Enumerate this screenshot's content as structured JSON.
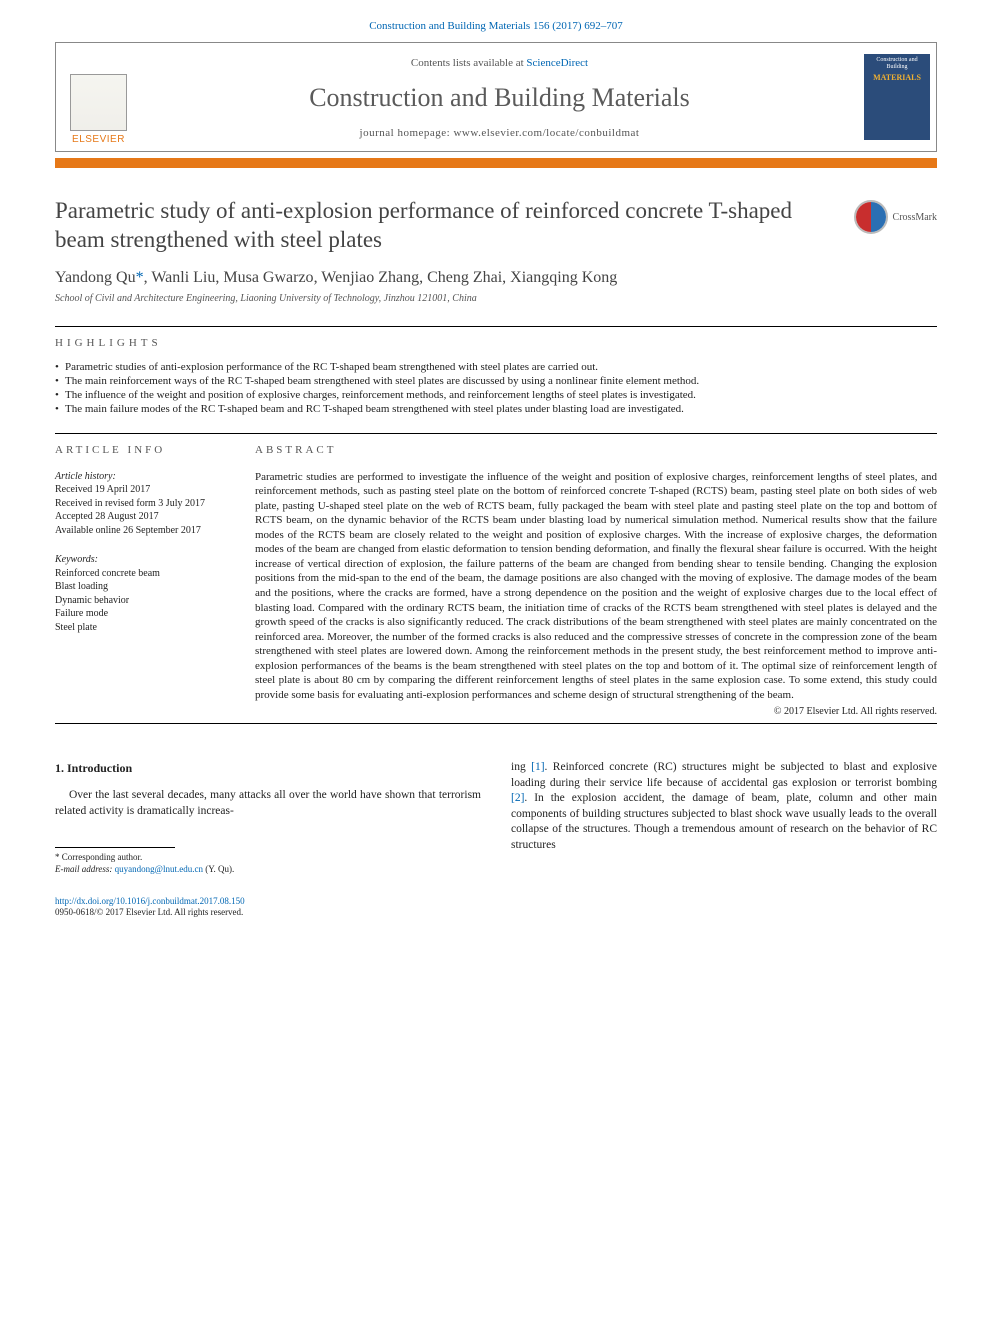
{
  "colors": {
    "link": "#0066b3",
    "accent": "#e67817",
    "text": "#222222",
    "heading": "#555555",
    "cover_bg": "#2b4c7a",
    "cover_accent": "#f0b030"
  },
  "citation": "Construction and Building Materials 156 (2017) 692–707",
  "header": {
    "contents_prefix": "Contents lists available at ",
    "contents_link": "ScienceDirect",
    "journal": "Construction and Building Materials",
    "homepage_prefix": "journal homepage: ",
    "homepage": "www.elsevier.com/locate/conbuildmat",
    "publisher": "ELSEVIER",
    "cover_line1": "Construction and Building",
    "cover_line2": "MATERIALS"
  },
  "crossmark_label": "CrossMark",
  "title": "Parametric study of anti-explosion performance of reinforced concrete T-shaped beam strengthened with steel plates",
  "authors_html": "Yandong Qu *, Wanli Liu, Musa Gwarzo, Wenjiao Zhang, Cheng Zhai, Xiangqing Kong",
  "corr_marker": "*",
  "affiliation": "School of Civil and Architecture Engineering, Liaoning University of Technology, Jinzhou 121001, China",
  "highlights_heading": "HIGHLIGHTS",
  "highlights": [
    "Parametric studies of anti-explosion performance of the RC T-shaped beam strengthened with steel plates are carried out.",
    "The main reinforcement ways of the RC T-shaped beam strengthened with steel plates are discussed by using a nonlinear finite element method.",
    "The influence of the weight and position of explosive charges, reinforcement methods, and reinforcement lengths of steel plates is investigated.",
    "The main failure modes of the RC T-shaped beam and RC T-shaped beam strengthened with steel plates under blasting load are investigated."
  ],
  "article_info_heading": "ARTICLE INFO",
  "history_label": "Article history:",
  "history": [
    "Received 19 April 2017",
    "Received in revised form 3 July 2017",
    "Accepted 28 August 2017",
    "Available online 26 September 2017"
  ],
  "keywords_label": "Keywords:",
  "keywords": [
    "Reinforced concrete beam",
    "Blast loading",
    "Dynamic behavior",
    "Failure mode",
    "Steel plate"
  ],
  "abstract_heading": "ABSTRACT",
  "abstract": "Parametric studies are performed to investigate the influence of the weight and position of explosive charges, reinforcement lengths of steel plates, and reinforcement methods, such as pasting steel plate on the bottom of reinforced concrete T-shaped (RCTS) beam, pasting steel plate on both sides of web plate, pasting U-shaped steel plate on the web of RCTS beam, fully packaged the beam with steel plate and pasting steel plate on the top and bottom of RCTS beam, on the dynamic behavior of the RCTS beam under blasting load by numerical simulation method. Numerical results show that the failure modes of the RCTS beam are closely related to the weight and position of explosive charges. With the increase of explosive charges, the deformation modes of the beam are changed from elastic deformation to tension bending deformation, and finally the flexural shear failure is occurred. With the height increase of vertical direction of explosion, the failure patterns of the beam are changed from bending shear to tensile bending. Changing the explosion positions from the mid-span to the end of the beam, the damage positions are also changed with the moving of explosive. The damage modes of the beam and the positions, where the cracks are formed, have a strong dependence on the position and the weight of explosive charges due to the local effect of blasting load. Compared with the ordinary RCTS beam, the initiation time of cracks of the RCTS beam strengthened with steel plates is delayed and the growth speed of the cracks is also significantly reduced. The crack distributions of the beam strengthened with steel plates are mainly concentrated on the reinforced area. Moreover, the number of the formed cracks is also reduced and the compressive stresses of concrete in the compression zone of the beam strengthened with steel plates are lowered down. Among the reinforcement methods in the present study, the best reinforcement method to improve anti-explosion performances of the beams is the beam strengthened with steel plates on the top and bottom of it. The optimal size of reinforcement length of steel plate is about 80 cm by comparing the different reinforcement lengths of steel plates in the same explosion case. To some extend, this study could provide some basis for evaluating anti-explosion performances and scheme design of structural strengthening of the beam.",
  "copyright": "© 2017 Elsevier Ltd. All rights reserved.",
  "intro_heading": "1. Introduction",
  "intro_left": "Over the last several decades, many attacks all over the world have shown that terrorism related activity is dramatically increas-",
  "intro_right_1": "ing ",
  "intro_ref1": "[1]",
  "intro_right_2": ". Reinforced concrete (RC) structures might be subjected to blast and explosive loading during their service life because of accidental gas explosion or terrorist bombing ",
  "intro_ref2": "[2]",
  "intro_right_3": ". In the explosion accident, the damage of beam, plate, column and other main components of building structures subjected to blast shock wave usually leads to the overall collapse of the structures. Though a tremendous amount of research on the behavior of RC structures",
  "footnotes": {
    "corr_label": "* Corresponding author.",
    "email_label": "E-mail address: ",
    "email": "quyandong@lnut.edu.cn",
    "email_name": " (Y. Qu)."
  },
  "bottom": {
    "doi": "http://dx.doi.org/10.1016/j.conbuildmat.2017.08.150",
    "issn_line": "0950-0618/© 2017 Elsevier Ltd. All rights reserved."
  }
}
